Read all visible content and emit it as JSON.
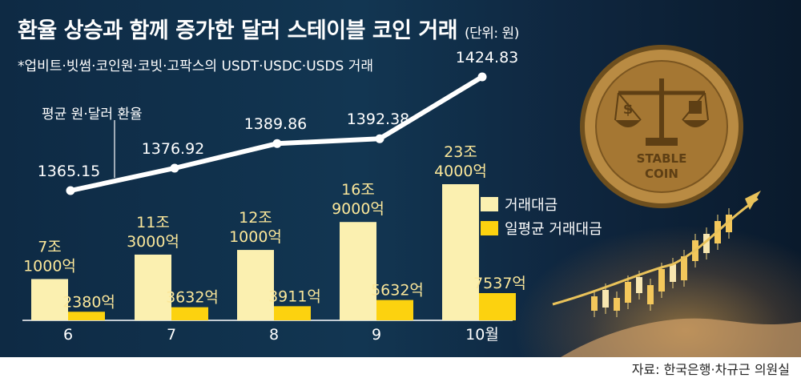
{
  "title": "환율 상승과 함께 증가한 달러 스테이블 코인 거래",
  "unit": "(단위: 원)",
  "subtitle": "*업비트·빗썸·코인원·코빗·고팍스의 USDT·USDC·USDS 거래",
  "line_label": "평균 원·달러 환율",
  "source": "자료: 한국은행·차규근 의원실",
  "coin_text": [
    "STABLE",
    "COIN"
  ],
  "colors": {
    "background": "#123652",
    "total_bar": "#fbf0b0",
    "daily_bar": "#fcd20f",
    "line": "#ffffff",
    "bar_label": "#fbe79a"
  },
  "chart_data": {
    "type": "bar",
    "categories": [
      "6",
      "7",
      "8",
      "9",
      "10월"
    ],
    "series": [
      {
        "name": "거래대금",
        "values": [
          71000,
          113000,
          121000,
          169000,
          234000
        ],
        "labels": [
          [
            "7조",
            "1000억"
          ],
          [
            "11조",
            "3000억"
          ],
          [
            "12조",
            "1000억"
          ],
          [
            "16조",
            "9000억"
          ],
          [
            "23조",
            "4000억"
          ]
        ]
      },
      {
        "name": "일평균 거래대금",
        "values": [
          2380,
          3632,
          3911,
          5632,
          7537
        ],
        "labels": [
          "2380억",
          "3632억",
          "3911억",
          "5632억",
          "7537억"
        ]
      }
    ],
    "line": {
      "name": "평균 원·달러 환율",
      "values": [
        1365.15,
        1376.92,
        1389.86,
        1392.38,
        1424.83
      ],
      "labels": [
        "1365.15",
        "1376.92",
        "1389.86",
        "1392.38",
        "1424.83"
      ]
    },
    "legend_position": "right"
  }
}
